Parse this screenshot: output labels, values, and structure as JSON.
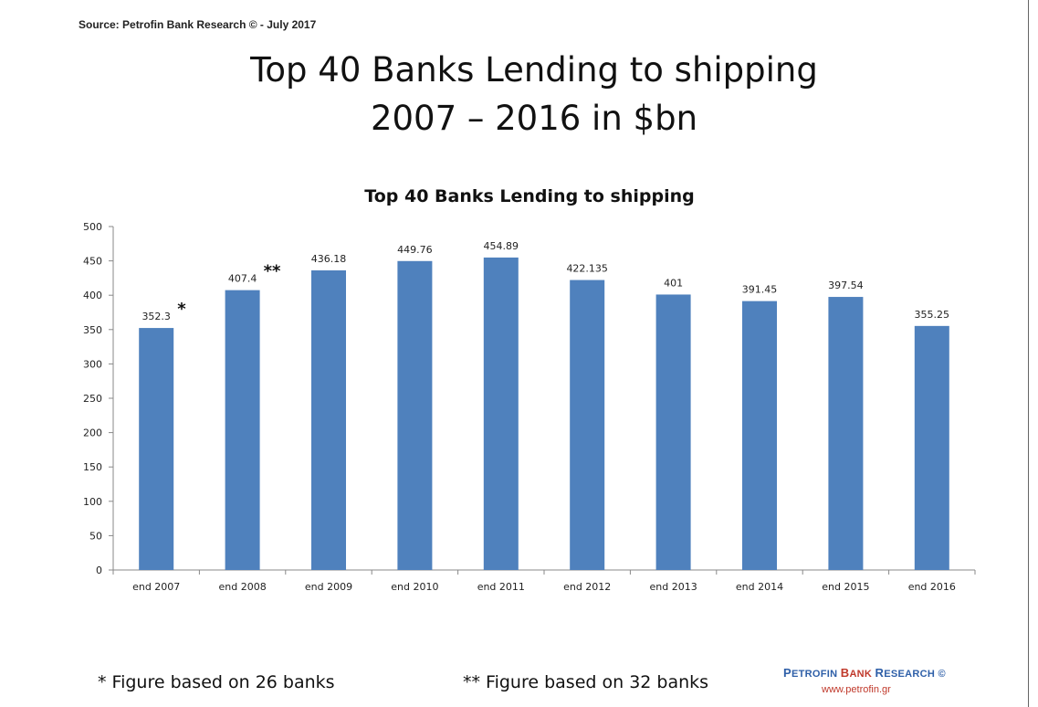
{
  "source": "Source: Petrofin Bank Research © - July 2017",
  "slide_title_line1": "Top 40 Banks Lending to shipping",
  "slide_title_line2": "2007 – 2016 in $bn",
  "chart_data": {
    "type": "bar",
    "title": "Top 40 Banks Lending to shipping",
    "categories": [
      "end 2007",
      "end 2008",
      "end 2009",
      "end 2010",
      "end 2011",
      "end 2012",
      "end 2013",
      "end 2014",
      "end 2015",
      "end 2016"
    ],
    "values": [
      352.3,
      407.4,
      436.18,
      449.76,
      454.89,
      422.135,
      401,
      391.45,
      397.54,
      355.25
    ],
    "data_labels": [
      "352.3",
      "407.4",
      "436.18",
      "449.76",
      "454.89",
      "422.135",
      "401",
      "391.45",
      "397.54",
      "355.25"
    ],
    "markers": [
      "*",
      "**",
      "",
      "",
      "",
      "",
      "",
      "",
      "",
      ""
    ],
    "ylim": [
      0,
      500
    ],
    "yticks": [
      0,
      50,
      100,
      150,
      200,
      250,
      300,
      350,
      400,
      450,
      500
    ],
    "bar_color": "#4f81bd",
    "grid": false,
    "xlabel": "",
    "ylabel": ""
  },
  "footnotes": {
    "single": "* Figure based on 26 banks",
    "double": "** Figure based on 32 banks"
  },
  "brand": {
    "p": "P",
    "etrofin": "ETROFIN",
    "b": "B",
    "ank": "ANK",
    "r": "R",
    "esearch": "ESEARCH ©",
    "url": "www.petrofin.gr"
  }
}
